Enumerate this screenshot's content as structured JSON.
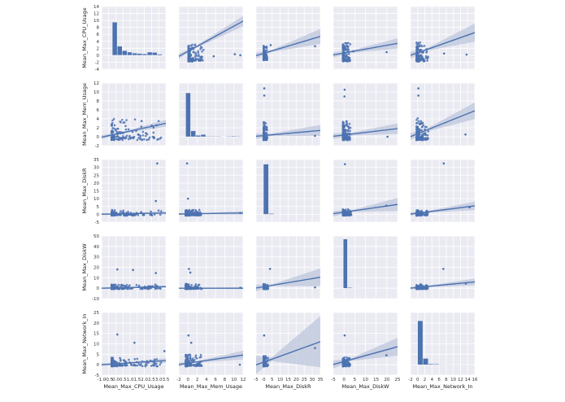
{
  "colors": {
    "panel_bg": "#eaeaf2",
    "grid": "#ffffff",
    "marker": "#4c72b0",
    "band": "#c5cde0"
  },
  "chart_data": {
    "type": "scatter",
    "variables": [
      "Mean_Max_CPU_Usage",
      "Mean_Max_Mem_Usage",
      "Mean_Max_DiskR",
      "Mean_Max_DiskW",
      "Mean_Max_Network_In"
    ],
    "axes": [
      {
        "lim": [
          -1,
          3.5
        ],
        "ticks": [
          -1.0,
          -0.5,
          0.0,
          0.5,
          1.0,
          1.5,
          2.0,
          2.5,
          3.0,
          3.5
        ],
        "tick_labels": [
          "-1.0",
          "-0.5",
          "0.0",
          "0.5",
          "1.0",
          "1.5",
          "2.0",
          "2.5",
          "3.0",
          "3.5"
        ]
      },
      {
        "lim": [
          -2,
          12
        ],
        "ticks": [
          -2,
          0,
          2,
          4,
          6,
          8,
          10,
          12
        ],
        "tick_labels": [
          "-2",
          "0",
          "2",
          "4",
          "6",
          "8",
          "10",
          "12"
        ]
      },
      {
        "lim": [
          -5,
          35
        ],
        "ticks": [
          -5,
          0,
          5,
          10,
          15,
          20,
          25,
          30,
          35
        ],
        "tick_labels": [
          "-5",
          "0",
          "5",
          "10",
          "15",
          "20",
          "25",
          "30",
          "35"
        ]
      },
      {
        "lim": [
          -10,
          50
        ],
        "ticks": [
          -10,
          0,
          10,
          20,
          30,
          40,
          50
        ],
        "tick_labels": [
          "-10",
          "0",
          "10",
          "20",
          "30",
          "40",
          "50"
        ]
      },
      {
        "lim": [
          -5,
          25
        ],
        "ticks": [
          -5,
          0,
          5,
          10,
          15,
          20,
          25
        ],
        "tick_labels": [
          "-5",
          "0",
          "5",
          "10",
          "15",
          "20",
          "25"
        ]
      }
    ],
    "y_axes": [
      {
        "lim": [
          -4,
          14
        ],
        "ticks": [
          -4,
          -2,
          0,
          2,
          4,
          6,
          8,
          10,
          12,
          14
        ],
        "tick_labels": [
          "-4",
          "-2",
          "0",
          "2",
          "4",
          "6",
          "8",
          "10",
          "12",
          "14"
        ]
      },
      {
        "lim": [
          -2,
          12
        ],
        "ticks": [
          -2,
          0,
          2,
          4,
          6,
          8,
          10,
          12
        ],
        "tick_labels": [
          "-2",
          "0",
          "2",
          "4",
          "6",
          "8",
          "10",
          "12"
        ]
      },
      {
        "lim": [
          -5,
          35
        ],
        "ticks": [
          -5,
          0,
          5,
          10,
          15,
          20,
          25,
          30,
          35
        ],
        "tick_labels": [
          "-5",
          "0",
          "5",
          "10",
          "15",
          "20",
          "25",
          "30",
          "35"
        ]
      },
      {
        "lim": [
          -10,
          50
        ],
        "ticks": [
          -10,
          0,
          10,
          20,
          30,
          40,
          50
        ],
        "tick_labels": [
          "-10",
          "0",
          "10",
          "20",
          "30",
          "40",
          "50"
        ]
      },
      {
        "lim": [
          -5,
          25
        ],
        "ticks": [
          -5,
          0,
          5,
          10,
          15,
          20,
          25
        ],
        "tick_labels": [
          "-5",
          "0",
          "5",
          "10",
          "15",
          "20",
          "25"
        ]
      }
    ],
    "bottom_axes": [
      {
        "lim": [
          -1,
          3.5
        ],
        "ticks": [
          -1.0,
          -0.5,
          0.0,
          0.5,
          1.0,
          1.5,
          2.0,
          2.5,
          3.0,
          3.5
        ],
        "tick_labels": [
          "-1.0",
          "-0.5",
          "0.0",
          "0.5",
          "1.0",
          "1.5",
          "2.0",
          "2.5",
          "3.0",
          "3.5"
        ]
      },
      {
        "lim": [
          -2,
          12
        ],
        "ticks": [
          -2,
          0,
          2,
          4,
          6,
          8,
          10,
          12
        ],
        "tick_labels": [
          "-2",
          "0",
          "2",
          "4",
          "6",
          "8",
          "10",
          "12"
        ]
      },
      {
        "lim": [
          -5,
          35
        ],
        "ticks": [
          -5,
          0,
          5,
          10,
          15,
          20,
          25,
          30,
          35
        ],
        "tick_labels": [
          "-5",
          "0",
          "5",
          "10",
          "15",
          "20",
          "25",
          "30",
          "35"
        ]
      },
      {
        "lim": [
          -5,
          25
        ],
        "ticks": [
          -5,
          0,
          5,
          10,
          15,
          20,
          25
        ],
        "tick_labels": [
          "-5",
          "0",
          "5",
          "10",
          "15",
          "20",
          "25"
        ]
      },
      {
        "lim": [
          -2,
          16
        ],
        "ticks": [
          -2,
          0,
          2,
          4,
          6,
          8,
          10,
          12,
          14,
          16
        ],
        "tick_labels": [
          "-2",
          "0",
          "2",
          "4",
          "6",
          "8",
          "10",
          "12",
          "14",
          "16"
        ]
      }
    ],
    "histograms": [
      {
        "bins": [
          -0.6,
          -0.25,
          0.1,
          0.45,
          0.8,
          1.15,
          1.5,
          1.85,
          2.2,
          2.55,
          2.9,
          3.25
        ],
        "counts": [
          0,
          9.5,
          2.6,
          1.3,
          0.9,
          0.6,
          0.5,
          0.4,
          0.9,
          0.8,
          0.3
        ],
        "ymax": 14,
        "ymin": -4
      },
      {
        "bins": [
          -0.5,
          0.6,
          1.7,
          2.8,
          3.9,
          5.0,
          6.1,
          7.2,
          8.3,
          9.4,
          10.5,
          11.6
        ],
        "counts": [
          9.8,
          1.3,
          0.3,
          0.5,
          0.1,
          0.1,
          0.1,
          0,
          0.1,
          0.15,
          0.1
        ],
        "ymax": 12,
        "ymin": -2
      },
      {
        "bins": [
          -0.4,
          2.9,
          6.2,
          9.5,
          12.8,
          16.1,
          19.4,
          22.7,
          26.0,
          29.3,
          32.6
        ],
        "counts": [
          32,
          0.5,
          0.2,
          0.1,
          0.05,
          0.05,
          0.05,
          0.05,
          0.05,
          0.05
        ],
        "ymax": 35,
        "ymin": -5
      },
      {
        "bins": [
          -0.3,
          1.7,
          3.7,
          5.7,
          7.7,
          9.7,
          11.7,
          13.7,
          15.7,
          17.7,
          19.7
        ],
        "counts": [
          47,
          0.6,
          0.2,
          0.1,
          0.1,
          0.05,
          0.05,
          0.05,
          0.05,
          0.05
        ],
        "ymax": 50,
        "ymin": -10
      },
      {
        "bins": [
          0.0,
          1.5,
          3.0,
          4.5,
          6.0,
          7.5,
          9.0,
          10.5,
          12.0,
          13.5,
          15.0
        ],
        "counts": [
          21,
          3,
          0.4,
          0.3,
          0.15,
          0.1,
          0.05,
          0.05,
          0.05,
          0.05
        ],
        "ymax": 25,
        "ymin": -5
      }
    ],
    "regression": [
      [
        null,
        [
          -0.3,
          9.8
        ],
        [
          -0.1,
          5.4
        ],
        [
          0.1,
          3.4
        ],
        [
          0.0,
          6.5
        ]
      ],
      [
        [
          -0.1,
          3.0
        ],
        null,
        [
          0.1,
          1.4
        ],
        [
          0.1,
          1.8
        ],
        [
          0.02,
          5.8
        ]
      ],
      [
        [
          0.1,
          0.9
        ],
        [
          0.2,
          0.9
        ],
        null,
        [
          0.4,
          6.3
        ],
        [
          0.2,
          5.4
        ]
      ],
      [
        [
          0.0,
          1.5
        ],
        [
          0.0,
          0.0
        ],
        [
          0.2,
          10.5
        ],
        null,
        [
          0.1,
          6.0
        ]
      ],
      [
        [
          0.0,
          2.0
        ],
        [
          0.1,
          4.6
        ],
        [
          -0.1,
          11.0
        ],
        [
          0.1,
          8.6
        ],
        null
      ]
    ],
    "band": [
      [
        null,
        [
          0.3,
          0.8
        ],
        [
          0.3,
          1.2
        ],
        [
          0.3,
          0.8
        ],
        [
          0.3,
          1.5
        ]
      ],
      [
        [
          0.2,
          0.4
        ],
        null,
        [
          0.3,
          0.6
        ],
        [
          0.3,
          0.6
        ],
        [
          0.3,
          1.0
        ]
      ],
      [
        [
          0.3,
          0.5
        ],
        [
          0.3,
          0.5
        ],
        null,
        [
          0.5,
          2.5
        ],
        [
          0.4,
          1.5
        ]
      ],
      [
        [
          0.3,
          0.5
        ],
        [
          0.3,
          0.4
        ],
        [
          0.8,
          5.0
        ],
        null,
        [
          0.5,
          1.8
        ]
      ],
      [
        [
          0.3,
          0.6
        ],
        [
          0.3,
          1.2
        ],
        [
          0.8,
          7.5
        ],
        [
          0.6,
          2.5
        ],
        null
      ]
    ],
    "scatter_params": [
      [
        null,
        {
          "xs": [
            0.1,
            3.5
          ],
          "ys": [
            -1.5,
            3.5
          ]
        },
        {
          "xs": [
            -0.3,
            2.0
          ],
          "ys": [
            -1.2,
            3.0
          ]
        },
        {
          "xs": [
            -0.5,
            3.0
          ],
          "ys": [
            -1.5,
            3.5
          ]
        },
        {
          "xs": [
            -0.3,
            3.0
          ],
          "ys": [
            -1.5,
            3.5
          ]
        }
      ],
      [
        {
          "xs": [
            -0.3,
            3.2
          ],
          "ys": [
            -0.5,
            4.0
          ]
        },
        null,
        {
          "xs": [
            -0.3,
            2.0
          ],
          "ys": [
            -0.5,
            3.5
          ]
        },
        {
          "xs": [
            -0.5,
            3.0
          ],
          "ys": [
            -0.5,
            3.5
          ]
        },
        {
          "xs": [
            -0.3,
            3.0
          ],
          "ys": [
            -0.5,
            4.0
          ]
        }
      ],
      [
        {
          "xs": [
            -0.3,
            3.2
          ],
          "ys": [
            -0.5,
            2.5
          ]
        },
        {
          "xs": [
            -0.5,
            3.0
          ],
          "ys": [
            -0.5,
            3.0
          ]
        },
        null,
        {
          "xs": [
            -0.5,
            3.5
          ],
          "ys": [
            -0.5,
            3.0
          ]
        },
        {
          "xs": [
            -0.3,
            3.0
          ],
          "ys": [
            -0.5,
            2.5
          ]
        }
      ],
      [
        {
          "xs": [
            -0.3,
            3.2
          ],
          "ys": [
            -0.5,
            3.5
          ]
        },
        {
          "xs": [
            -0.5,
            3.0
          ],
          "ys": [
            -0.5,
            4.0
          ]
        },
        {
          "xs": [
            -0.3,
            2.5
          ],
          "ys": [
            -0.5,
            4.0
          ]
        },
        null,
        {
          "xs": [
            -0.3,
            3.0
          ],
          "ys": [
            -0.5,
            3.5
          ]
        }
      ],
      [
        {
          "xs": [
            -0.3,
            3.2
          ],
          "ys": [
            -0.5,
            3.5
          ]
        },
        {
          "xs": [
            -0.5,
            3.0
          ],
          "ys": [
            -0.5,
            5.0
          ]
        },
        {
          "xs": [
            -0.3,
            2.5
          ],
          "ys": [
            -0.5,
            4.0
          ]
        },
        {
          "xs": [
            -0.5,
            3.0
          ],
          "ys": [
            -0.5,
            3.5
          ]
        },
        null
      ]
    ],
    "outliers": [
      [
        null,
        [
          [
            11.4,
            0.0
          ],
          [
            5.6,
            -0.3
          ],
          [
            10.2,
            0.3
          ]
        ],
        [
          [
            31.7,
            2.6
          ],
          [
            4.1,
            2.9
          ]
        ],
        [
          [
            19.9,
            0.9
          ],
          [
            4.3,
            1.1
          ]
        ],
        [
          [
            13.7,
            0.2
          ],
          [
            7.4,
            0.5
          ]
        ]
      ],
      [
        [
          [
            2.1,
            0.8
          ],
          [
            1.8,
            3.5
          ],
          [
            0.5,
            0.8
          ]
        ],
        null,
        [
          [
            0.1,
            10.8
          ],
          [
            0.1,
            9.2
          ],
          [
            31.7,
            0.2
          ]
        ],
        [
          [
            0.3,
            10.5
          ],
          [
            0.2,
            9.0
          ],
          [
            20.3,
            0.0
          ]
        ],
        [
          [
            0.2,
            10.8
          ],
          [
            0.2,
            9.2
          ],
          [
            13.4,
            0.5
          ]
        ]
      ],
      [
        [
          [
            2.9,
            32.5
          ],
          [
            2.8,
            8.5
          ]
        ],
        [
          [
            -0.2,
            32.5
          ],
          [
            0.0,
            10.0
          ],
          [
            11.4,
            0.8
          ]
        ],
        null,
        [
          [
            0.4,
            32.0
          ],
          [
            19.7,
            5.5
          ]
        ],
        [
          [
            7.3,
            32.5
          ],
          [
            14.6,
            4.5
          ]
        ]
      ],
      [
        [
          [
            0.1,
            18.0
          ],
          [
            1.2,
            17.5
          ],
          [
            2.8,
            14.5
          ]
        ],
        [
          [
            0.2,
            18.5
          ],
          [
            0.5,
            15.0
          ],
          [
            11.4,
            0.5
          ]
        ],
        [
          [
            3.7,
            18.5
          ],
          [
            31.7,
            0.8
          ]
        ],
        null,
        [
          [
            7.2,
            18.5
          ],
          [
            13.5,
            4.5
          ]
        ]
      ],
      [
        [
          [
            0.1,
            14.5
          ],
          [
            1.3,
            10.5
          ],
          [
            3.4,
            6.5
          ]
        ],
        [
          [
            0.1,
            14.0
          ],
          [
            0.7,
            10.5
          ],
          [
            11.3,
            0.0
          ]
        ],
        [
          [
            0.0,
            14.0
          ],
          [
            31.7,
            8.0
          ]
        ],
        [
          [
            0.3,
            14.0
          ],
          [
            19.8,
            4.5
          ]
        ],
        null
      ]
    ]
  }
}
